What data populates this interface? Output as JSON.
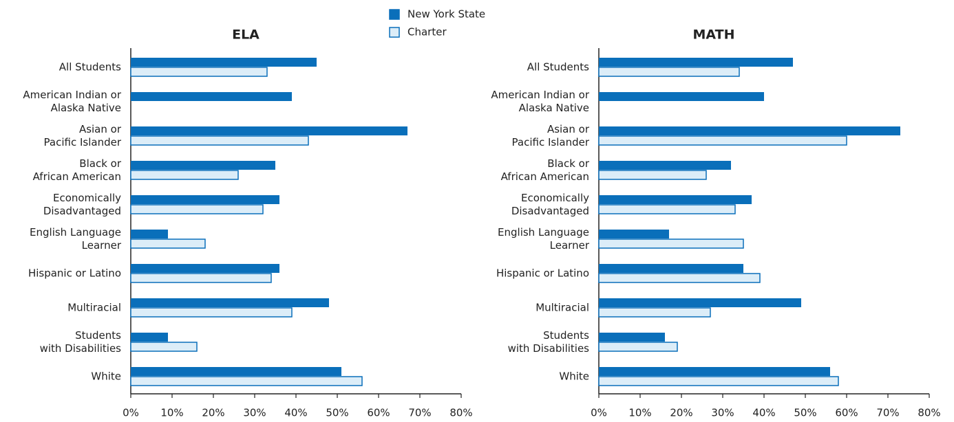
{
  "chart_data": [
    {
      "type": "bar",
      "orientation": "horizontal",
      "title": "ELA",
      "categories": [
        "All Students",
        "American Indian or\nAlaska Native",
        "Asian or\nPacific Islander",
        "Black or\nAfrican American",
        "Economically\nDisadvantaged",
        "English Language\nLearner",
        "Hispanic or Latino",
        "Multiracial",
        "Students\nwith Disabilities",
        "White"
      ],
      "series": [
        {
          "name": "New York State",
          "color": "#0a6fba",
          "values": [
            45,
            39,
            67,
            35,
            36,
            9,
            36,
            48,
            9,
            51
          ]
        },
        {
          "name": "Charter",
          "color": "#dcedf8",
          "values": [
            33,
            null,
            43,
            26,
            32,
            18,
            34,
            39,
            16,
            56
          ]
        }
      ],
      "xlim": [
        0,
        80
      ],
      "xticks": [
        {
          "value": 0,
          "label": "0%"
        },
        {
          "value": 10,
          "label": "10%"
        },
        {
          "value": 20,
          "label": "20%"
        },
        {
          "value": 30,
          "label": "30%"
        },
        {
          "value": 40,
          "label": "40%"
        },
        {
          "value": 50,
          "label": "50%"
        },
        {
          "value": 60,
          "label": "60%"
        },
        {
          "value": 70,
          "label": "70%"
        },
        {
          "value": 80,
          "label": "80%"
        }
      ]
    },
    {
      "type": "bar",
      "orientation": "horizontal",
      "title": "MATH",
      "categories": [
        "All Students",
        "American Indian or\nAlaska Native",
        "Asian or\nPacific Islander",
        "Black or\nAfrican American",
        "Economically\nDisadvantaged",
        "English Language\nLearner",
        "Hispanic or Latino",
        "Multiracial",
        "Students\nwith Disabilities",
        "White"
      ],
      "series": [
        {
          "color": "#0a6fba",
          "values": [
            47,
            40,
            73,
            32,
            37,
            17,
            35,
            49,
            16,
            56
          ]
        },
        {
          "color": "#dcedf8",
          "values": [
            34,
            null,
            60,
            26,
            33,
            35,
            39,
            27,
            19,
            58
          ]
        }
      ],
      "xlim": [
        0,
        80
      ],
      "xticks": [
        {
          "value": 0,
          "label": "0%"
        },
        {
          "value": 10,
          "label": "10%"
        },
        {
          "value": 20,
          "label": "20%"
        },
        {
          "value": 30,
          "label": "30%"
        },
        {
          "value": 40,
          "label": "40%"
        },
        {
          "value": 50,
          "label": "50%"
        },
        {
          "value": 60,
          "label": "60%"
        },
        {
          "value": 70,
          "label": "70%"
        },
        {
          "value": 80,
          "label": "80%"
        }
      ]
    }
  ]
}
